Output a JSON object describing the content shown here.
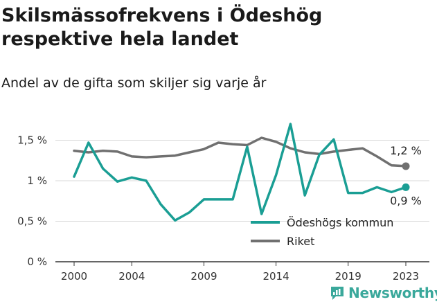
{
  "title": "Skilsmässofrekvens i Ödeshög respektive hela landet",
  "subtitle": "Andel av de gifta som skiljer sig varje år",
  "brand": "Newsworthy",
  "colors": {
    "odeshog": "#1a9e94",
    "riket": "#707070",
    "grid": "#d9d9d9",
    "axis": "#333333",
    "brand": "#3aa89b"
  },
  "chart_data": {
    "type": "line",
    "x": [
      2000,
      2001,
      2002,
      2003,
      2004,
      2005,
      2006,
      2007,
      2008,
      2009,
      2010,
      2011,
      2012,
      2013,
      2014,
      2015,
      2016,
      2017,
      2018,
      2019,
      2020,
      2021,
      2022,
      2023
    ],
    "series": [
      {
        "name": "Ödeshögs kommun",
        "color": "#1a9e94",
        "values": [
          1.05,
          1.47,
          1.15,
          0.99,
          1.04,
          1.0,
          0.71,
          0.51,
          0.61,
          0.77,
          0.77,
          0.77,
          1.42,
          0.59,
          1.07,
          1.7,
          0.82,
          1.32,
          1.51,
          0.85,
          0.85,
          0.92,
          0.86,
          0.92
        ],
        "end_label": "0,9 %"
      },
      {
        "name": "Riket",
        "color": "#707070",
        "values": [
          1.37,
          1.35,
          1.37,
          1.36,
          1.3,
          1.29,
          1.3,
          1.31,
          1.35,
          1.39,
          1.47,
          1.45,
          1.44,
          1.53,
          1.48,
          1.4,
          1.35,
          1.33,
          1.36,
          1.38,
          1.4,
          1.3,
          1.19,
          1.18
        ],
        "end_label": "1,2 %"
      }
    ],
    "yticks": [
      0,
      0.5,
      1,
      1.5
    ],
    "ytick_labels": [
      "0 %",
      "0,5 %",
      "1 %",
      "1,5 %"
    ],
    "xticks": [
      2000,
      2004,
      2009,
      2014,
      2019,
      2023
    ],
    "xtick_labels": [
      "2000",
      "2004",
      "2009",
      "2014",
      "2019",
      "2023"
    ],
    "ylim": [
      0,
      1.75
    ],
    "xlim": [
      2000,
      2023
    ],
    "grid": true,
    "legend_position": "bottom-right"
  }
}
